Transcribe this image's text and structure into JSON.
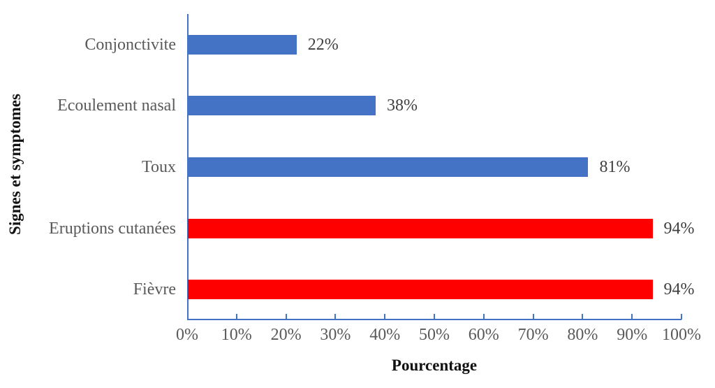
{
  "chart_data": {
    "type": "bar",
    "orientation": "horizontal",
    "categories": [
      "Conjonctivite",
      "Ecoulement nasal",
      "Toux",
      "Eruptions cutanées",
      "Fièvre"
    ],
    "values": [
      22,
      38,
      81,
      94,
      94
    ],
    "value_labels": [
      "22%",
      "38%",
      "81%",
      "94%",
      "94%"
    ],
    "bar_colors": [
      "#4472C4",
      "#4472C4",
      "#4472C4",
      "#FF0000",
      "#FF0000"
    ],
    "title": "",
    "xlabel": "Pourcentage",
    "ylabel": "Signes et symptomes",
    "xlim": [
      0,
      100
    ],
    "x_tick_values": [
      0,
      10,
      20,
      30,
      40,
      50,
      60,
      70,
      80,
      90,
      100
    ],
    "x_tick_labels": [
      "0%",
      "10%",
      "20%",
      "30%",
      "40%",
      "50%",
      "60%",
      "70%",
      "80%",
      "90%",
      "100%"
    ],
    "axis_color": "#4472C4",
    "grid": false,
    "legend_position": "none",
    "label_color_category": "#595959",
    "label_color_value": "#404040"
  }
}
